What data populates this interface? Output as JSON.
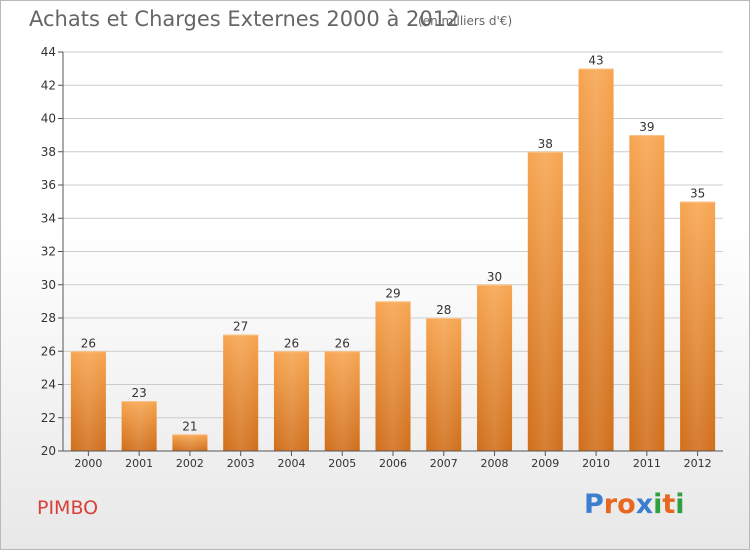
{
  "header": {
    "title": "Achats et Charges Externes 2000 à 2012",
    "subtitle": "(en milliers d'€)"
  },
  "footer": {
    "location": "PIMBO",
    "brand_letters": [
      "P",
      "r",
      "o",
      "x",
      "i",
      "t",
      "i"
    ],
    "brand_colors": [
      "#3a7fd0",
      "#e8661f",
      "#e8661f",
      "#3a7fd0",
      "#2f9f3f",
      "#e8661f",
      "#2f9f3f"
    ]
  },
  "colors": {
    "bar_top": "#f7a550",
    "bar_bottom": "#d06e1a",
    "axis": "#555555",
    "grid": "#cccccc",
    "text": "#333333"
  },
  "chart_data": {
    "type": "bar",
    "categories": [
      "2000",
      "2001",
      "2002",
      "2003",
      "2004",
      "2005",
      "2006",
      "2007",
      "2008",
      "2009",
      "2010",
      "2011",
      "2012"
    ],
    "values": [
      26,
      23,
      21,
      27,
      26,
      26,
      29,
      28,
      30,
      38,
      43,
      39,
      35
    ],
    "ylim": [
      20,
      44
    ],
    "yticks": [
      20,
      22,
      24,
      26,
      28,
      30,
      32,
      34,
      36,
      38,
      40,
      42,
      44
    ],
    "grid": true,
    "data_labels": true
  }
}
